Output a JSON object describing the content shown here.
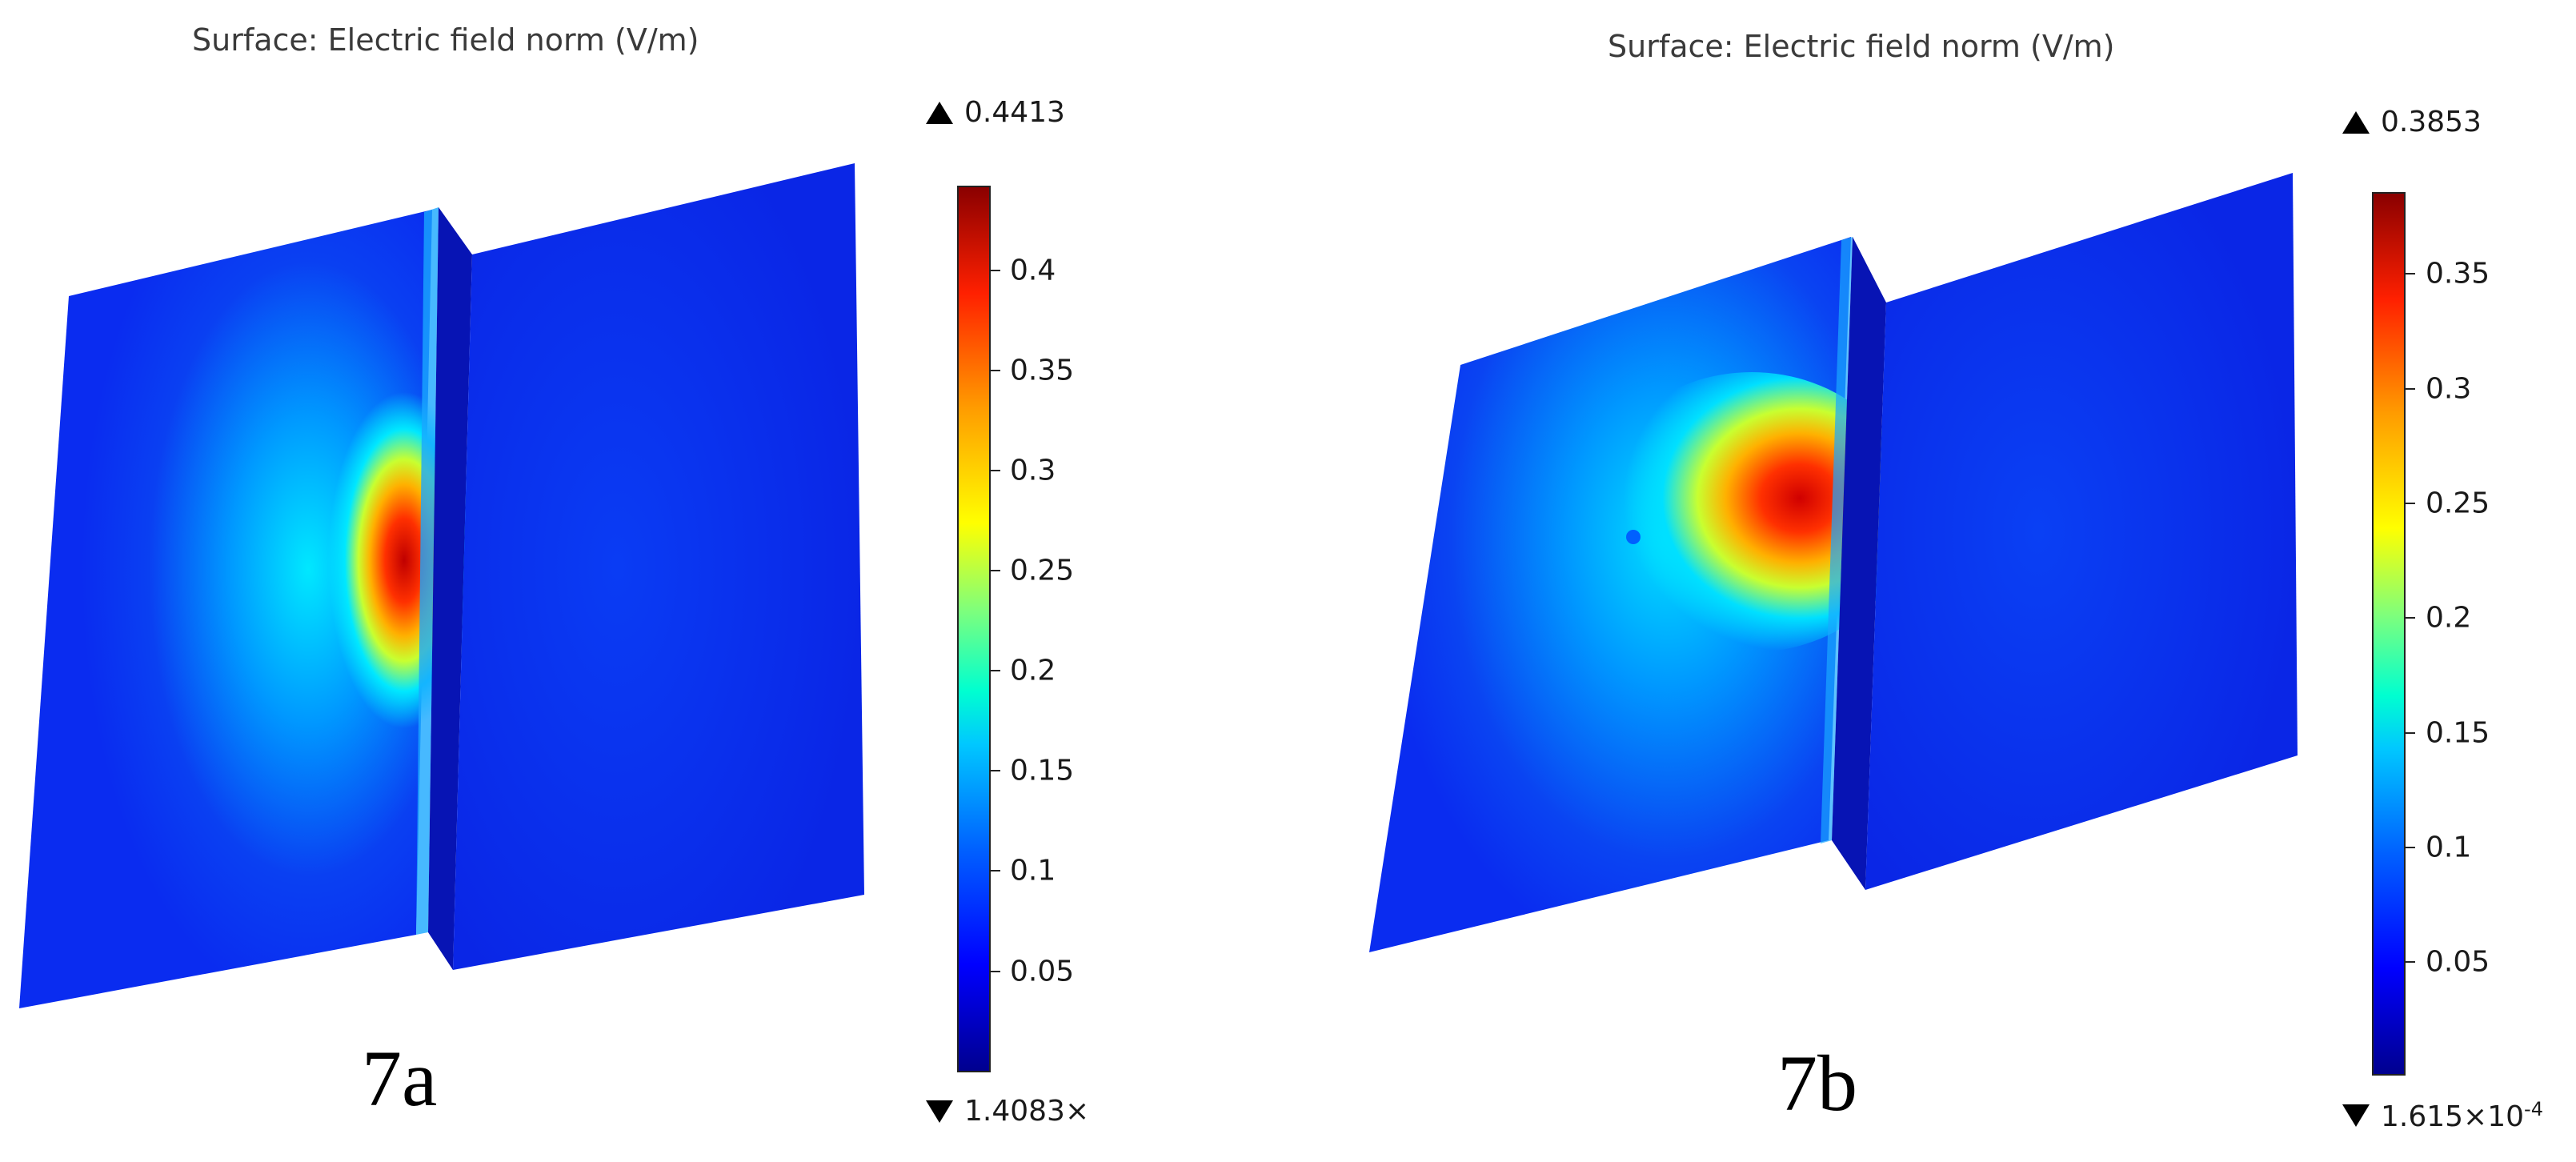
{
  "panels": [
    {
      "title": "Surface: Electric field norm (V/m)",
      "colorbar": {
        "max_label": "0.4413",
        "min_label": "1.4083×",
        "ticks": [
          "0.4",
          "0.35",
          "0.3",
          "0.25",
          "0.2",
          "0.15",
          "0.1",
          "0.05"
        ],
        "max_value": 0.4413,
        "colormap": "jet"
      },
      "caption": "7a"
    },
    {
      "title": "Surface: Electric field norm (V/m)",
      "colorbar": {
        "max_label": "0.3853",
        "min_label_mantissa": "1.615×10",
        "min_label_exponent": "-4",
        "ticks": [
          "0.35",
          "0.3",
          "0.25",
          "0.2",
          "0.15",
          "0.1",
          "0.05"
        ],
        "max_value": 0.3853,
        "colormap": "jet"
      },
      "caption": "7b"
    }
  ],
  "colors": {
    "surface_blue": "#0a2cf0",
    "surface_dark_blue": "#0716c8",
    "hotspot_red": "#c80000"
  }
}
